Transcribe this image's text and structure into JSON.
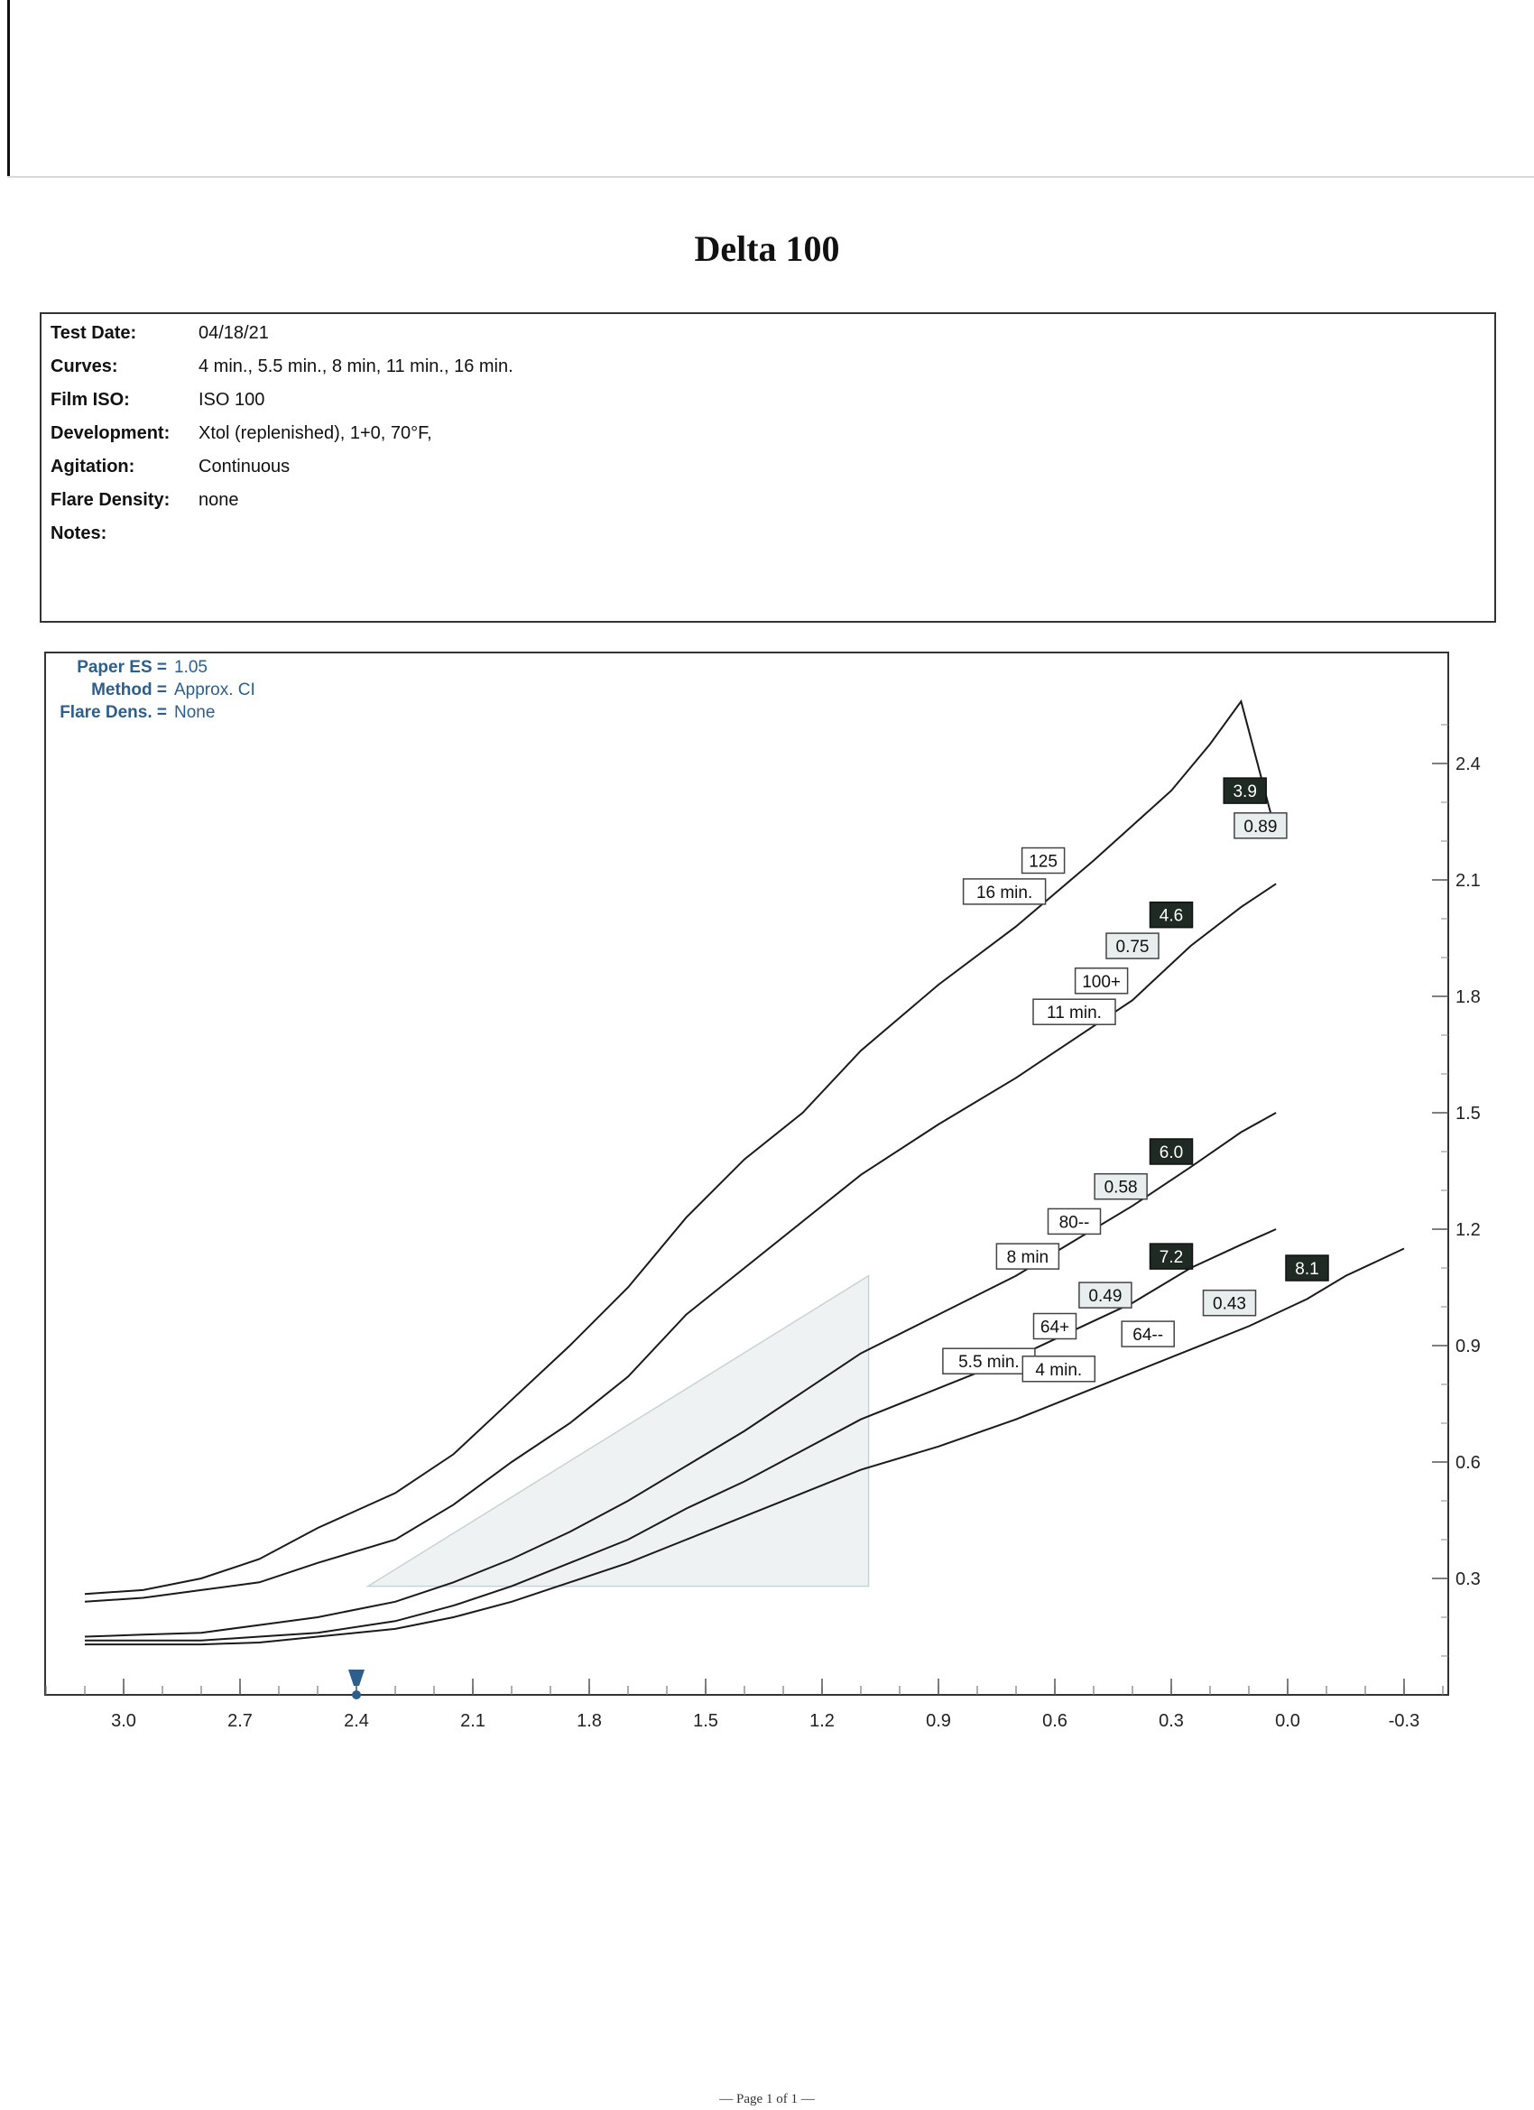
{
  "page": {
    "title": "Delta 100",
    "footer": "— Page 1 of 1 —"
  },
  "info": {
    "rows": [
      {
        "label": "Test Date:",
        "value": "04/18/21"
      },
      {
        "label": "Curves:",
        "value": "4 min., 5.5 min., 8 min, 11 min., 16 min."
      },
      {
        "label": "Film ISO:",
        "value": "ISO 100"
      },
      {
        "label": "Development:",
        "value": "Xtol (replenished), 1+0, 70°F,"
      },
      {
        "label": "Agitation:",
        "value": "Continuous"
      },
      {
        "label": "Flare Density:",
        "value": "none"
      },
      {
        "label": "Notes:",
        "value": ""
      }
    ]
  },
  "chart_data": {
    "type": "line",
    "title": "",
    "xlabel": "",
    "ylabel": "",
    "xlim": [
      3.2,
      -0.4
    ],
    "ylim": [
      0.0,
      2.55
    ],
    "x_ticks": [
      "3.0",
      "2.7",
      "2.4",
      "2.1",
      "1.8",
      "1.5",
      "1.2",
      "0.9",
      "0.6",
      "0.3",
      "0.0",
      "-0.3"
    ],
    "y_ticks": [
      "2.4",
      "2.1",
      "1.8",
      "1.5",
      "1.2",
      "0.9",
      "0.6",
      "0.3"
    ],
    "x_marker": 2.4,
    "grid": false,
    "legend": "top-left",
    "params": [
      {
        "label": "Paper ES =",
        "value": "1.05"
      },
      {
        "label": "Method =",
        "value": "Approx. CI"
      },
      {
        "label": "Flare Dens. =",
        "value": "None"
      }
    ],
    "shaded_region": {
      "x_from": 2.37,
      "x_to": 1.08,
      "y_bottom": 0.28,
      "y_top_left": 0.28,
      "y_top_right": 1.08
    },
    "series": [
      {
        "name": "16 min.",
        "points": [
          [
            3.1,
            0.26
          ],
          [
            2.95,
            0.27
          ],
          [
            2.8,
            0.3
          ],
          [
            2.65,
            0.35
          ],
          [
            2.5,
            0.43
          ],
          [
            2.3,
            0.52
          ],
          [
            2.15,
            0.62
          ],
          [
            2.0,
            0.76
          ],
          [
            1.85,
            0.9
          ],
          [
            1.7,
            1.05
          ],
          [
            1.55,
            1.23
          ],
          [
            1.4,
            1.38
          ],
          [
            1.25,
            1.5
          ],
          [
            1.1,
            1.66
          ],
          [
            0.9,
            1.83
          ],
          [
            0.7,
            1.98
          ],
          [
            0.5,
            2.15
          ],
          [
            0.3,
            2.33
          ],
          [
            0.2,
            2.45
          ],
          [
            0.12,
            2.56
          ],
          [
            0.03,
            2.22
          ]
        ],
        "labels": [
          {
            "text": "16 min.",
            "kind": "name",
            "x": 0.73,
            "y": 2.07
          },
          {
            "text": "125",
            "kind": "speed",
            "x": 0.63,
            "y": 2.15
          },
          {
            "text": "0.89",
            "kind": "ci",
            "x": 0.07,
            "y": 2.24
          },
          {
            "text": "3.9",
            "kind": "zone",
            "x": 0.11,
            "y": 2.33
          }
        ]
      },
      {
        "name": "11 min.",
        "points": [
          [
            3.1,
            0.24
          ],
          [
            2.95,
            0.25
          ],
          [
            2.8,
            0.27
          ],
          [
            2.65,
            0.29
          ],
          [
            2.5,
            0.34
          ],
          [
            2.3,
            0.4
          ],
          [
            2.15,
            0.49
          ],
          [
            2.0,
            0.6
          ],
          [
            1.85,
            0.7
          ],
          [
            1.7,
            0.82
          ],
          [
            1.55,
            0.98
          ],
          [
            1.4,
            1.1
          ],
          [
            1.25,
            1.22
          ],
          [
            1.1,
            1.34
          ],
          [
            0.9,
            1.47
          ],
          [
            0.7,
            1.59
          ],
          [
            0.55,
            1.69
          ],
          [
            0.4,
            1.79
          ],
          [
            0.25,
            1.93
          ],
          [
            0.12,
            2.03
          ],
          [
            0.03,
            2.09
          ]
        ],
        "labels": [
          {
            "text": "11 min.",
            "kind": "name",
            "x": 0.55,
            "y": 1.76
          },
          {
            "text": "100+",
            "kind": "speed",
            "x": 0.48,
            "y": 1.84
          },
          {
            "text": "0.75",
            "kind": "ci",
            "x": 0.4,
            "y": 1.93
          },
          {
            "text": "4.6",
            "kind": "zone",
            "x": 0.3,
            "y": 2.01
          }
        ]
      },
      {
        "name": "8 min",
        "points": [
          [
            3.1,
            0.15
          ],
          [
            2.95,
            0.155
          ],
          [
            2.8,
            0.16
          ],
          [
            2.65,
            0.18
          ],
          [
            2.5,
            0.2
          ],
          [
            2.3,
            0.24
          ],
          [
            2.15,
            0.29
          ],
          [
            2.0,
            0.35
          ],
          [
            1.85,
            0.42
          ],
          [
            1.7,
            0.5
          ],
          [
            1.55,
            0.59
          ],
          [
            1.4,
            0.68
          ],
          [
            1.25,
            0.78
          ],
          [
            1.1,
            0.88
          ],
          [
            0.9,
            0.98
          ],
          [
            0.7,
            1.08
          ],
          [
            0.55,
            1.17
          ],
          [
            0.4,
            1.26
          ],
          [
            0.25,
            1.36
          ],
          [
            0.12,
            1.45
          ],
          [
            0.03,
            1.5
          ]
        ],
        "labels": [
          {
            "text": "8 min",
            "kind": "name",
            "x": 0.67,
            "y": 1.13
          },
          {
            "text": "80--",
            "kind": "speed",
            "x": 0.55,
            "y": 1.22
          },
          {
            "text": "0.58",
            "kind": "ci",
            "x": 0.43,
            "y": 1.31
          },
          {
            "text": "6.0",
            "kind": "zone",
            "x": 0.3,
            "y": 1.4
          }
        ]
      },
      {
        "name": "5.5 min.",
        "points": [
          [
            3.1,
            0.14
          ],
          [
            2.95,
            0.14
          ],
          [
            2.8,
            0.14
          ],
          [
            2.65,
            0.15
          ],
          [
            2.5,
            0.16
          ],
          [
            2.3,
            0.19
          ],
          [
            2.15,
            0.23
          ],
          [
            2.0,
            0.28
          ],
          [
            1.85,
            0.34
          ],
          [
            1.7,
            0.4
          ],
          [
            1.55,
            0.48
          ],
          [
            1.4,
            0.55
          ],
          [
            1.25,
            0.63
          ],
          [
            1.1,
            0.71
          ],
          [
            0.9,
            0.79
          ],
          [
            0.7,
            0.87
          ],
          [
            0.55,
            0.94
          ],
          [
            0.4,
            1.01
          ],
          [
            0.25,
            1.1
          ],
          [
            0.12,
            1.16
          ],
          [
            0.03,
            1.2
          ]
        ],
        "labels": [
          {
            "text": "5.5 min.",
            "kind": "name",
            "x": 0.77,
            "y": 0.86
          },
          {
            "text": "64+",
            "kind": "speed",
            "x": 0.6,
            "y": 0.95
          },
          {
            "text": "0.49",
            "kind": "ci",
            "x": 0.47,
            "y": 1.03
          },
          {
            "text": "7.2",
            "kind": "zone",
            "x": 0.3,
            "y": 1.13
          }
        ]
      },
      {
        "name": "4 min.",
        "points": [
          [
            3.1,
            0.13
          ],
          [
            2.95,
            0.13
          ],
          [
            2.8,
            0.13
          ],
          [
            2.65,
            0.135
          ],
          [
            2.5,
            0.15
          ],
          [
            2.3,
            0.17
          ],
          [
            2.15,
            0.2
          ],
          [
            2.0,
            0.24
          ],
          [
            1.85,
            0.29
          ],
          [
            1.7,
            0.34
          ],
          [
            1.55,
            0.4
          ],
          [
            1.4,
            0.46
          ],
          [
            1.25,
            0.52
          ],
          [
            1.1,
            0.58
          ],
          [
            0.9,
            0.64
          ],
          [
            0.7,
            0.71
          ],
          [
            0.55,
            0.77
          ],
          [
            0.4,
            0.83
          ],
          [
            0.25,
            0.89
          ],
          [
            0.1,
            0.95
          ],
          [
            -0.05,
            1.02
          ],
          [
            -0.15,
            1.08
          ],
          [
            -0.3,
            1.15
          ]
        ],
        "labels": [
          {
            "text": "4 min.",
            "kind": "name",
            "x": 0.59,
            "y": 0.84
          },
          {
            "text": "64--",
            "kind": "speed",
            "x": 0.36,
            "y": 0.93
          },
          {
            "text": "0.43",
            "kind": "ci",
            "x": 0.15,
            "y": 1.01
          },
          {
            "text": "8.1",
            "kind": "zone",
            "x": -0.05,
            "y": 1.1
          }
        ]
      }
    ]
  }
}
